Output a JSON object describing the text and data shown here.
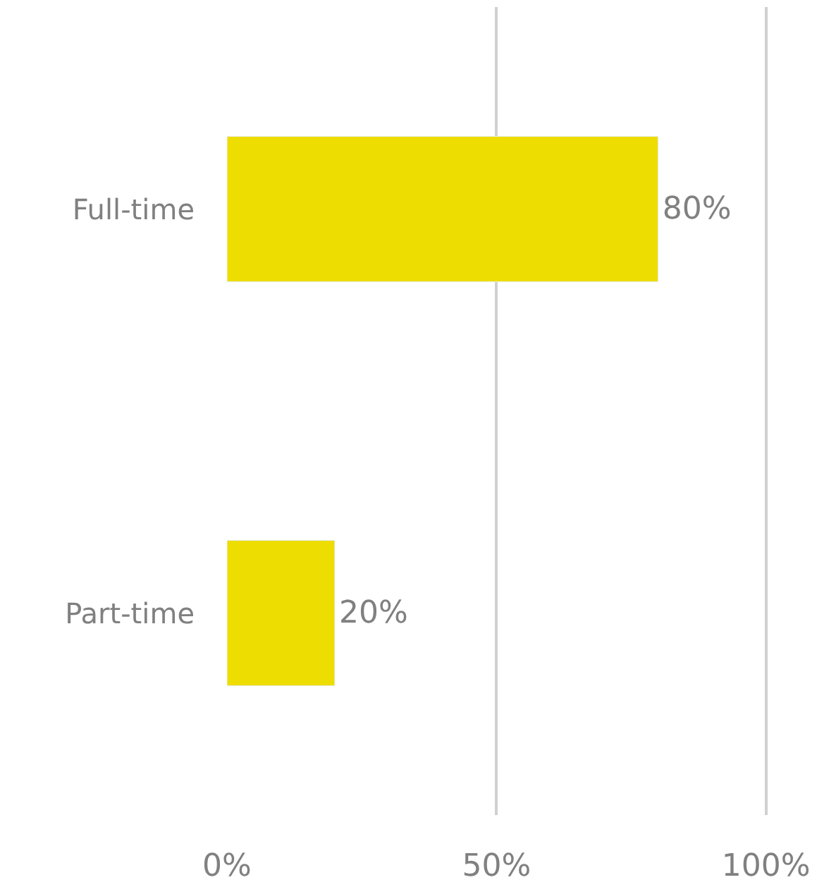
{
  "chart_data": {
    "type": "bar",
    "orientation": "horizontal",
    "categories": [
      "Full-time",
      "Part-time"
    ],
    "values": [
      80,
      20
    ],
    "color": "#eedd00",
    "value_labels": [
      "80%",
      "20%"
    ],
    "xlim": [
      0,
      113
    ],
    "xticks": [
      {
        "value": 0,
        "label": "0%"
      },
      {
        "value": 50,
        "label": "50%"
      },
      {
        "value": 100,
        "label": "100%"
      }
    ],
    "grid": "x",
    "legend": false
  }
}
